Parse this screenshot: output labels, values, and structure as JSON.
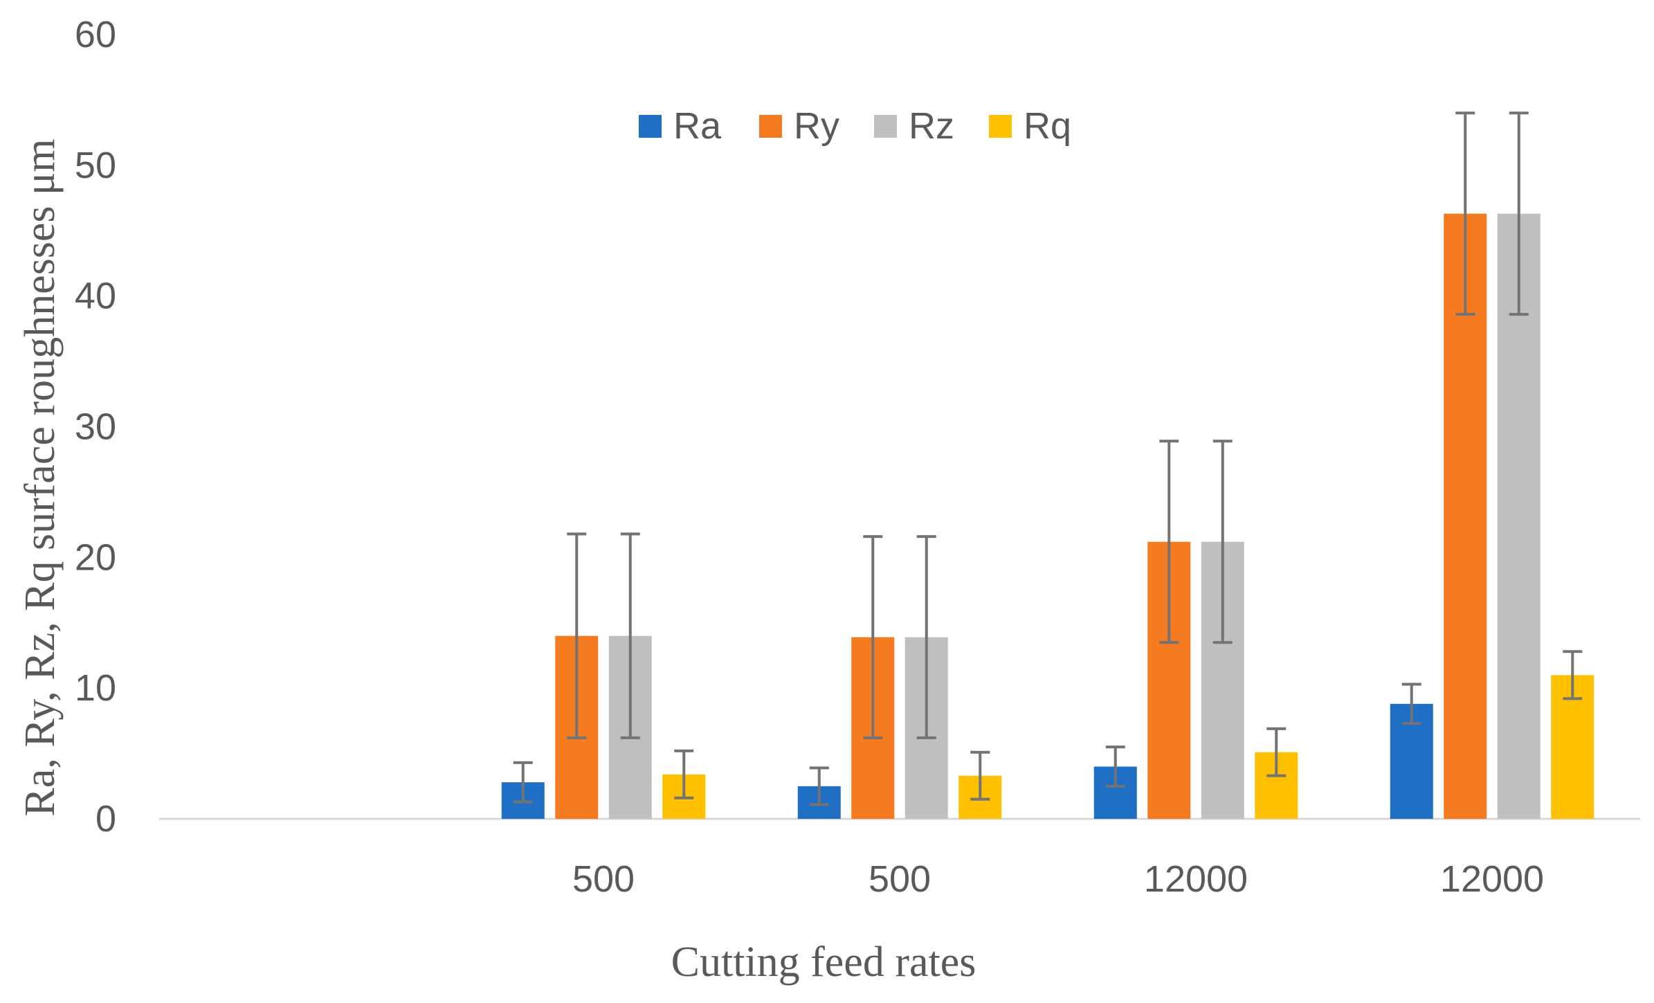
{
  "chart_data": {
    "type": "bar",
    "title": "",
    "xlabel": "Cutting feed rates",
    "ylabel": "Ra, Ry, Rz, Rq surface roughnesses μm",
    "ylim": [
      0,
      60
    ],
    "yticks": [
      0,
      10,
      20,
      30,
      40,
      50,
      60
    ],
    "grid": false,
    "legend_position": "top-center",
    "categories": [
      "",
      "500",
      "500",
      "12000",
      "12000"
    ],
    "series": [
      {
        "name": "Ra",
        "color": "#1f6fc5",
        "values": [
          null,
          2.8,
          2.5,
          4.0,
          8.8
        ],
        "errors": [
          null,
          1.5,
          1.4,
          1.5,
          1.5
        ]
      },
      {
        "name": "Ry",
        "color": "#f47b20",
        "values": [
          null,
          14.0,
          13.9,
          21.2,
          46.3
        ],
        "errors": [
          null,
          7.8,
          7.7,
          7.7,
          7.7
        ]
      },
      {
        "name": "Rz",
        "color": "#bfbfbf",
        "values": [
          null,
          14.0,
          13.9,
          21.2,
          46.3
        ],
        "errors": [
          null,
          7.8,
          7.7,
          7.7,
          7.7
        ]
      },
      {
        "name": "Rq",
        "color": "#ffc000",
        "values": [
          null,
          3.4,
          3.3,
          5.1,
          11.0
        ],
        "errors": [
          null,
          1.8,
          1.8,
          1.8,
          1.8
        ]
      }
    ],
    "error_bar_color": "#737373"
  }
}
